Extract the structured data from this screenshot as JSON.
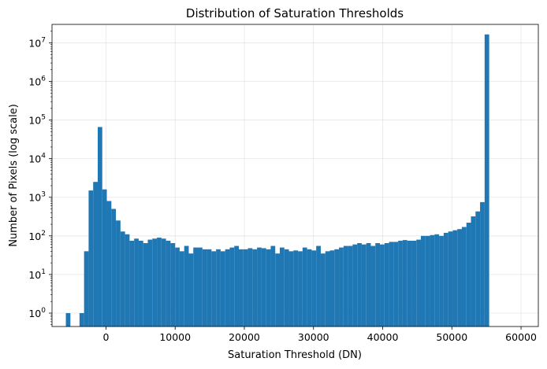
{
  "chart_data": {
    "type": "bar",
    "title": "Distribution of Saturation Thresholds",
    "xlabel": "Saturation Threshold (DN)",
    "ylabel": "Number of Pixels (log scale)",
    "y_scale": "log",
    "grid": true,
    "color": "#1f77b4",
    "xlim": [
      -7800,
      62500
    ],
    "ylim": [
      0.45,
      30000000
    ],
    "x_ticks": [
      0,
      10000,
      20000,
      30000,
      40000,
      50000,
      60000
    ],
    "x_tick_labels": [
      "0",
      "10000",
      "20000",
      "30000",
      "40000",
      "50000",
      "60000"
    ],
    "y_ticks": [
      1,
      10,
      100,
      1000,
      10000,
      100000,
      1000000,
      10000000
    ],
    "y_tick_labels": [
      {
        "base": "10",
        "exp": "0"
      },
      {
        "base": "10",
        "exp": "1"
      },
      {
        "base": "10",
        "exp": "2"
      },
      {
        "base": "10",
        "exp": "3"
      },
      {
        "base": "10",
        "exp": "4"
      },
      {
        "base": "10",
        "exp": "5"
      },
      {
        "base": "10",
        "exp": "6"
      },
      {
        "base": "10",
        "exp": "7"
      }
    ],
    "bin_start": -5800,
    "bin_width": 658,
    "counts": [
      1,
      0,
      0,
      1,
      40,
      1500,
      2500,
      66000,
      1600,
      800,
      500,
      250,
      130,
      110,
      75,
      85,
      75,
      65,
      80,
      85,
      90,
      85,
      75,
      65,
      50,
      40,
      55,
      35,
      50,
      50,
      45,
      45,
      40,
      45,
      40,
      45,
      50,
      55,
      45,
      45,
      48,
      45,
      50,
      48,
      45,
      55,
      35,
      50,
      45,
      40,
      42,
      40,
      50,
      45,
      42,
      55,
      35,
      40,
      42,
      45,
      50,
      55,
      55,
      60,
      65,
      60,
      65,
      55,
      65,
      60,
      65,
      70,
      70,
      75,
      78,
      75,
      75,
      80,
      100,
      100,
      105,
      110,
      100,
      120,
      130,
      140,
      150,
      170,
      220,
      320,
      430,
      750,
      16500000
    ]
  }
}
